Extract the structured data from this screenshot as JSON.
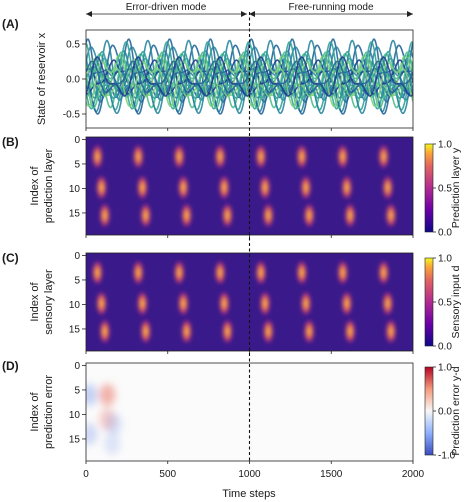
{
  "modes": {
    "left": "Error-driven mode",
    "right": "Free-running mode"
  },
  "shared_x": {
    "label": "Time steps",
    "ticks": [
      0,
      500,
      1000,
      1500,
      2000
    ],
    "xlim": [
      0,
      2000
    ],
    "divider_at": 1000
  },
  "chart_data": [
    {
      "panel": "(A)",
      "type": "line",
      "ylabel": "State of reservoir x",
      "ylim": [
        -0.7,
        0.7
      ],
      "yticks": [
        0.5,
        0.0,
        -0.5
      ],
      "xlim": [
        0,
        2000
      ],
      "period": 250,
      "series_count": 20,
      "colors": [
        "#1f3f8f",
        "#23669a",
        "#2a86a0",
        "#32a39a",
        "#4dbd8c",
        "#7fd180"
      ]
    },
    {
      "panel": "(B)",
      "type": "heatmap",
      "ylabel_lines": [
        "Index of",
        "prediction layer"
      ],
      "yticks": [
        0,
        5,
        10,
        15
      ],
      "rows": 20,
      "xlim": [
        0,
        2000
      ],
      "period": 250,
      "colorbar": {
        "label": "Prediction layer y",
        "ticks": [
          "1.0",
          "0.5",
          "0.0"
        ],
        "range": [
          0,
          1
        ],
        "map": "plasma"
      }
    },
    {
      "panel": "(C)",
      "type": "heatmap",
      "ylabel_lines": [
        "Index of",
        "sensory layer"
      ],
      "yticks": [
        0,
        5,
        10,
        15
      ],
      "rows": 20,
      "xlim": [
        0,
        2000
      ],
      "period": 250,
      "colorbar": {
        "label": "Sensory input d",
        "ticks": [
          "1.0",
          "0.5",
          "0.0"
        ],
        "range": [
          0,
          1
        ],
        "map": "plasma"
      }
    },
    {
      "panel": "(D)",
      "type": "heatmap",
      "ylabel_lines": [
        "Index of",
        "prediction error"
      ],
      "yticks": [
        0,
        5,
        10,
        15
      ],
      "rows": 20,
      "xlim": [
        0,
        2000
      ],
      "colorbar": {
        "label": "Prediction error y-d",
        "ticks": [
          "1.0",
          "0.0",
          "-1.0"
        ],
        "range": [
          -1,
          1
        ],
        "map": "coolwarm"
      },
      "error_blobs": [
        {
          "t": 20,
          "row": 6,
          "value": -0.15
        },
        {
          "t": 20,
          "row": 14,
          "value": -0.12
        },
        {
          "t": 130,
          "row": 6,
          "value": 0.18
        },
        {
          "t": 130,
          "row": 11,
          "value": 0.12
        },
        {
          "t": 170,
          "row": 12,
          "value": -0.1
        },
        {
          "t": 160,
          "row": 16,
          "value": -0.08
        }
      ]
    }
  ]
}
